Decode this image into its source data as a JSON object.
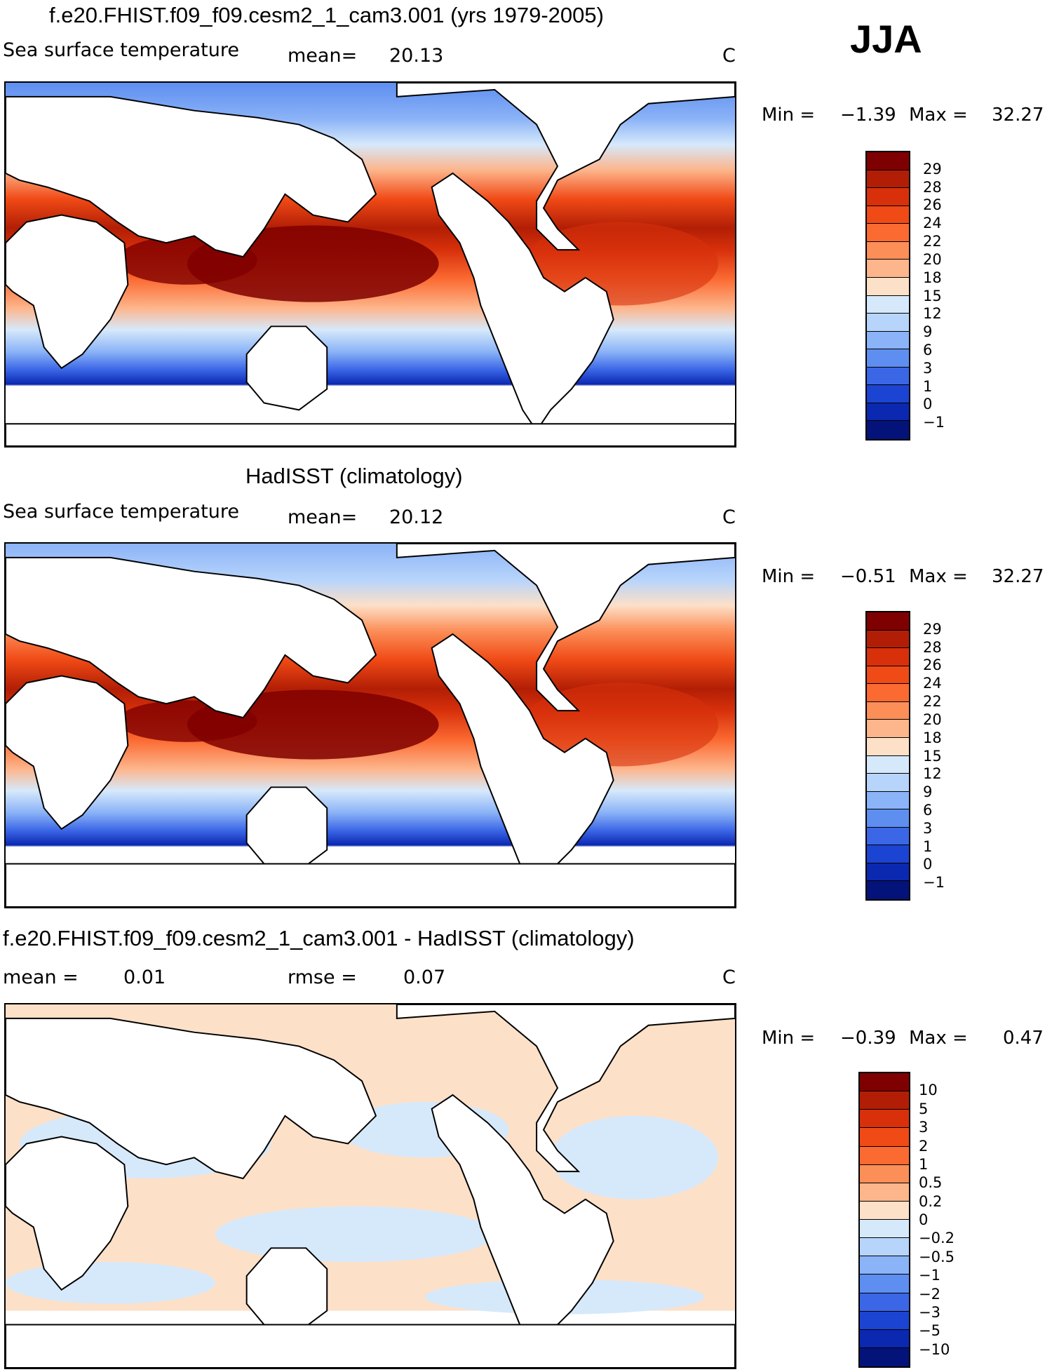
{
  "season": "JJA",
  "panels": [
    {
      "id": "model",
      "title": "f.e20.FHIST.f09_f09.cesm2_1_cam3.001 (yrs 1979-2005)",
      "variable": "Sea surface temperature",
      "stat1_label": "mean=",
      "stat1_value": "20.13",
      "stat2_label": "",
      "stat2_value": "",
      "units": "C",
      "min_label": "Min =",
      "min_value": "−1.39",
      "max_label": "Max =",
      "max_value": "32.27",
      "colorbar": {
        "labels": [
          "29",
          "28",
          "26",
          "24",
          "22",
          "20",
          "18",
          "15",
          "12",
          "9",
          "6",
          "3",
          "1",
          "0",
          "−1"
        ],
        "colors": [
          "#7f0000",
          "#b21e05",
          "#d7300b",
          "#f04a16",
          "#fb6a31",
          "#fc8e58",
          "#fdb58c",
          "#fde0c8",
          "#d6e9fb",
          "#b7d4fb",
          "#8bb3f7",
          "#5e8ef0",
          "#3b66e6",
          "#1c44d2",
          "#0a28b0",
          "#03137a"
        ]
      }
    },
    {
      "id": "obs",
      "title": "HadISST (climatology)",
      "variable": "Sea surface temperature",
      "stat1_label": "mean=",
      "stat1_value": "20.12",
      "stat2_label": "",
      "stat2_value": "",
      "units": "C",
      "min_label": "Min =",
      "min_value": "−0.51",
      "max_label": "Max =",
      "max_value": "32.27",
      "colorbar": {
        "labels": [
          "29",
          "28",
          "26",
          "24",
          "22",
          "20",
          "18",
          "15",
          "12",
          "9",
          "6",
          "3",
          "1",
          "0",
          "−1"
        ],
        "colors": [
          "#7f0000",
          "#b21e05",
          "#d7300b",
          "#f04a16",
          "#fb6a31",
          "#fc8e58",
          "#fdb58c",
          "#fde0c8",
          "#d6e9fb",
          "#b7d4fb",
          "#8bb3f7",
          "#5e8ef0",
          "#3b66e6",
          "#1c44d2",
          "#0a28b0",
          "#03137a"
        ]
      }
    },
    {
      "id": "diff",
      "title": "f.e20.FHIST.f09_f09.cesm2_1_cam3.001 - HadISST (climatology)",
      "variable": "",
      "stat1_label": "mean =",
      "stat1_value": "0.01",
      "stat2_label": "rmse =",
      "stat2_value": "0.07",
      "units": "C",
      "min_label": "Min =",
      "min_value": "−0.39",
      "max_label": "Max =",
      "max_value": "0.47",
      "colorbar": {
        "labels": [
          "10",
          "5",
          "3",
          "2",
          "1",
          "0.5",
          "0.2",
          "0",
          "−0.2",
          "−0.5",
          "−1",
          "−2",
          "−3",
          "−5",
          "−10"
        ],
        "colors": [
          "#7f0000",
          "#b21e05",
          "#d7300b",
          "#f04a16",
          "#fb6a31",
          "#fc8e58",
          "#fdb58c",
          "#fde0c8",
          "#d6e9fb",
          "#b7d4fb",
          "#8bb3f7",
          "#5e8ef0",
          "#3b66e6",
          "#1c44d2",
          "#0a28b0",
          "#03137a"
        ]
      }
    }
  ]
}
